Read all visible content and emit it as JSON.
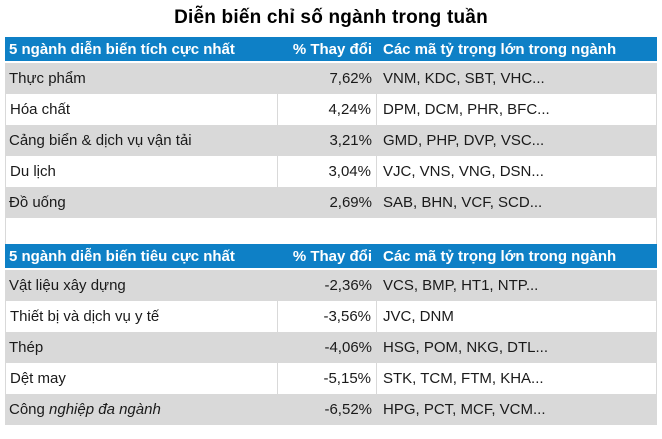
{
  "title": "Diễn biến chỉ số ngành trong tuần",
  "colors": {
    "header_bg": "#0E80C6",
    "alt_row_bg": "#D9D9D9",
    "border": "#D9D9D9",
    "cell_text": "#1A1A1A",
    "header_text": "#FFFFFF"
  },
  "tables": [
    {
      "id": "positive",
      "headers": {
        "sector": "5 ngành diễn biến tích cực nhất",
        "change": "% Thay đổi",
        "tickers": "Các mã tỷ trọng lớn trong ngành"
      },
      "rows": [
        {
          "sector": "Thực phẩm",
          "sector_italic": "",
          "change": "7,62%",
          "tickers": "VNM, KDC, SBT, VHC..."
        },
        {
          "sector": "Hóa chất",
          "sector_italic": "",
          "change": "4,24%",
          "tickers": "DPM, DCM, PHR, BFC..."
        },
        {
          "sector": "Cảng biển & dịch vụ vận tải",
          "sector_italic": "",
          "change": "3,21%",
          "tickers": "GMD, PHP, DVP, VSC..."
        },
        {
          "sector": "Du lịch",
          "sector_italic": "",
          "change": "3,04%",
          "tickers": "VJC, VNS, VNG, DSN..."
        },
        {
          "sector": "Đồ uống",
          "sector_italic": "",
          "change": "2,69%",
          "tickers": "SAB, BHN, VCF, SCD..."
        }
      ]
    },
    {
      "id": "negative",
      "headers": {
        "sector": "5 ngành diễn biến tiêu cực nhất",
        "change": "% Thay đổi",
        "tickers": "Các mã tỷ trọng lớn trong ngành"
      },
      "rows": [
        {
          "sector": "Vật liệu xây dựng",
          "sector_italic": "",
          "change": "-2,36%",
          "tickers": "VCS, BMP, HT1, NTP..."
        },
        {
          "sector": "Thiết bị và dịch vụ y tế",
          "sector_italic": "",
          "change": "-3,56%",
          "tickers": "JVC, DNM"
        },
        {
          "sector": "Thép",
          "sector_italic": "",
          "change": "-4,06%",
          "tickers": "HSG, POM, NKG, DTL..."
        },
        {
          "sector": "Dệt may",
          "sector_italic": "",
          "change": "-5,15%",
          "tickers": "STK, TCM, FTM, KHA..."
        },
        {
          "sector": "Công ",
          "sector_italic": "nghiệp đa ngành",
          "change": "-6,52%",
          "tickers": "HPG, PCT, MCF, VCM..."
        }
      ]
    }
  ]
}
